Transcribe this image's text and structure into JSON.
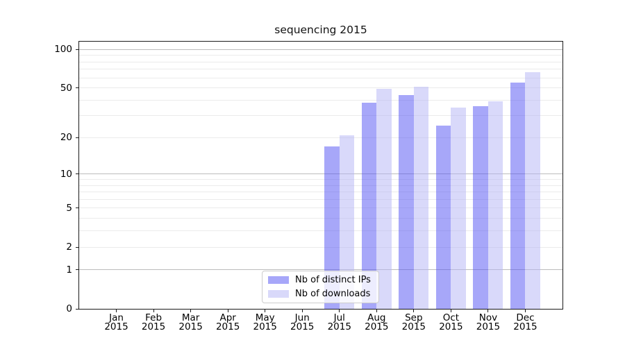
{
  "chart_data": {
    "type": "bar",
    "title": "sequencing 2015",
    "categories": [
      "Jan",
      "Feb",
      "Mar",
      "Apr",
      "May",
      "Jun",
      "Jul",
      "Aug",
      "Sep",
      "Oct",
      "Nov",
      "Dec"
    ],
    "x_year_label": "2015",
    "series": [
      {
        "name": "Nb of distinct IPs",
        "color": "#4f4ff3",
        "alpha": 0.5,
        "values": [
          0,
          0,
          0,
          0,
          0,
          0,
          17,
          38,
          44,
          25,
          36,
          55
        ]
      },
      {
        "name": "Nb of downloads",
        "color": "#b3b3f5",
        "alpha": 0.5,
        "values": [
          0,
          0,
          0,
          0,
          0,
          0,
          21,
          49,
          51,
          35,
          39,
          66
        ]
      }
    ],
    "xlabel": "",
    "ylabel": "",
    "yscale": "log1p",
    "ylim": [
      0,
      115
    ],
    "yticks": [
      0,
      1,
      2,
      5,
      10,
      20,
      50,
      100
    ],
    "grid": {
      "on": true,
      "minor": [
        2,
        3,
        4,
        5,
        6,
        7,
        8,
        9,
        20,
        30,
        40,
        50,
        60,
        70,
        80,
        90
      ],
      "major": [
        1,
        10,
        100
      ],
      "minor_color": "#ebebeb",
      "major_color": "#bcbcbc"
    },
    "legend_position": "lower center",
    "spine_color": "#1a1a1a",
    "background_color": "#ffffff"
  }
}
